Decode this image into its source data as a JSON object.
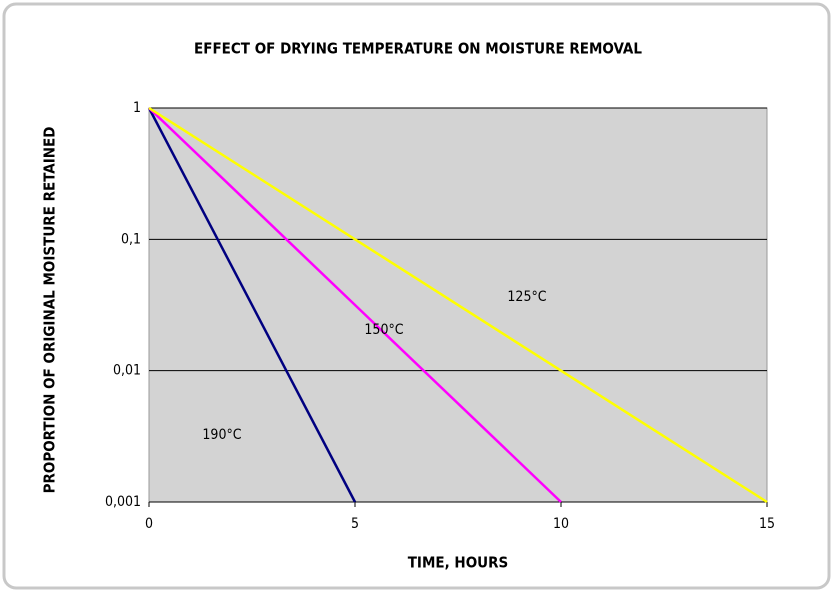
{
  "chart_data": {
    "type": "line",
    "title": "EFFECT OF DRYING TEMPERATURE ON MOISTURE REMOVAL",
    "x_label": "TIME, HOURS",
    "y_label": "PROPORTION OF ORIGINAL MOISTURE RETAINED",
    "log_y": true,
    "grid": true,
    "xlim": [
      0,
      15
    ],
    "xticks": [
      0,
      5,
      10,
      15
    ],
    "ylim": [
      0.001,
      1
    ],
    "yticks": [
      {
        "value": 0.001,
        "label": "0,001"
      },
      {
        "value": 0.01,
        "label": "0,01"
      },
      {
        "value": 0.1,
        "label": "0,1"
      },
      1
    ],
    "series": [
      {
        "name": "190°C",
        "color": "#000080",
        "x": [
          0,
          5
        ],
        "values": [
          1,
          0.001
        ]
      },
      {
        "name": "150°C",
        "color": "#ff00ff",
        "x": [
          0,
          10
        ],
        "values": [
          1,
          0.001
        ]
      },
      {
        "name": "125°C",
        "color": "#ffff00",
        "x": [
          0,
          15
        ],
        "values": [
          1,
          0.001
        ]
      }
    ]
  }
}
